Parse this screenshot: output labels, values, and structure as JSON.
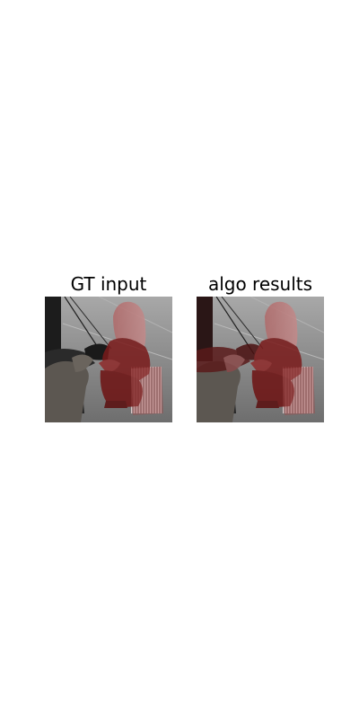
{
  "figure": {
    "panels": [
      {
        "title": "GT input"
      },
      {
        "title": "algo results"
      }
    ],
    "colors": {
      "background": "#ffffff",
      "mask_overlay": "#8b1a1a",
      "photo_gray": "#7d7d7d"
    }
  }
}
